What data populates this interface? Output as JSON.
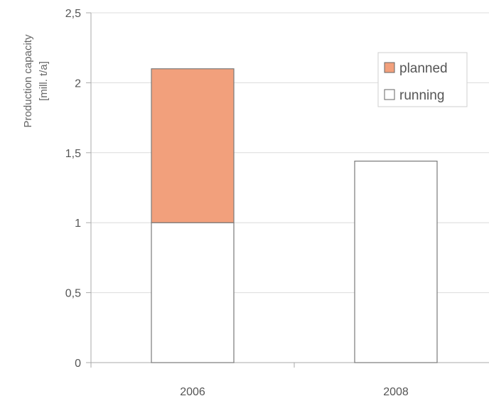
{
  "chart_data": {
    "type": "bar",
    "stacked": true,
    "categories": [
      "2006",
      "2008"
    ],
    "series": [
      {
        "name": "running",
        "values": [
          1.0,
          1.44
        ],
        "color": "#ffffff"
      },
      {
        "name": "planned",
        "values": [
          1.1,
          0
        ],
        "color": "#f2a07c"
      }
    ],
    "ylabel_line1": "Production capacity",
    "ylabel_line2": "[mill. t/a]",
    "ylim": [
      0,
      2.5
    ],
    "yticks": [
      "0",
      "0,5",
      "1",
      "1,5",
      "2",
      "2,5"
    ],
    "ytick_values": [
      0,
      0.5,
      1,
      1.5,
      2,
      2.5
    ],
    "grid": true,
    "legend": {
      "position": "top-right",
      "items": [
        {
          "label": "planned",
          "color": "#f2a07c"
        },
        {
          "label": "running",
          "color": "#ffffff"
        }
      ]
    }
  }
}
